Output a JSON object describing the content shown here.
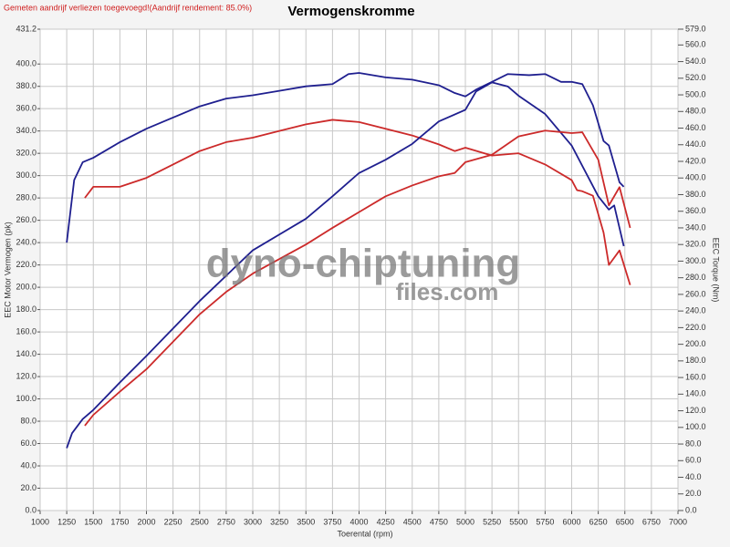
{
  "chart_data": {
    "type": "line",
    "title": "Vermogenskromme",
    "note": "Gemeten aandrijf verliezen toegevoegd!(Aandrijf rendement: 85.0%)",
    "watermark": [
      "dyno-chiptuning",
      "files.com"
    ],
    "xlabel": "Toerental (rpm)",
    "ylabel": "EEC Motor Vermogen (pk)",
    "y2label": "EEC Torque (Nm)",
    "xlim": [
      1000,
      7000
    ],
    "xticks": [
      1000,
      1250,
      1500,
      1750,
      2000,
      2250,
      2500,
      2750,
      3000,
      3250,
      3500,
      3750,
      4000,
      4250,
      4500,
      4750,
      5000,
      5250,
      5500,
      5750,
      6000,
      6250,
      6500,
      6750,
      7000
    ],
    "ylim": [
      0,
      431.2
    ],
    "yticks": [
      {
        "value": 0,
        "label": "0.0"
      },
      {
        "value": 20,
        "label": "20.0"
      },
      {
        "value": 40,
        "label": "40.0"
      },
      {
        "value": 60,
        "label": "60.0"
      },
      {
        "value": 80,
        "label": "80.0"
      },
      {
        "value": 100,
        "label": "100.0"
      },
      {
        "value": 120,
        "label": "120.0"
      },
      {
        "value": 140,
        "label": "140.0"
      },
      {
        "value": 160,
        "label": "160.0"
      },
      {
        "value": 180,
        "label": "180.0"
      },
      {
        "value": 200,
        "label": "200.0"
      },
      {
        "value": 220,
        "label": "220.0"
      },
      {
        "value": 240,
        "label": "240.0"
      },
      {
        "value": 260,
        "label": "260.0"
      },
      {
        "value": 280,
        "label": "280.0"
      },
      {
        "value": 300,
        "label": "300.0"
      },
      {
        "value": 320,
        "label": "320.0"
      },
      {
        "value": 340,
        "label": "340.0"
      },
      {
        "value": 360,
        "label": "360.0"
      },
      {
        "value": 380,
        "label": "380.0"
      },
      {
        "value": 400,
        "label": "400.0"
      },
      {
        "value": 431.2,
        "label": "431.2"
      }
    ],
    "y2lim": [
      0,
      579
    ],
    "y2ticks": [
      {
        "value": 0,
        "label": "0.0"
      },
      {
        "value": 20,
        "label": "20.0"
      },
      {
        "value": 40,
        "label": "40.0"
      },
      {
        "value": 60,
        "label": "60.0"
      },
      {
        "value": 80,
        "label": "80.0"
      },
      {
        "value": 100,
        "label": "100.0"
      },
      {
        "value": 120,
        "label": "120.0"
      },
      {
        "value": 140,
        "label": "140.0"
      },
      {
        "value": 160,
        "label": "160.0"
      },
      {
        "value": 180,
        "label": "180.0"
      },
      {
        "value": 200,
        "label": "200.0"
      },
      {
        "value": 220,
        "label": "220.0"
      },
      {
        "value": 240,
        "label": "240.0"
      },
      {
        "value": 260,
        "label": "260.0"
      },
      {
        "value": 280,
        "label": "280.0"
      },
      {
        "value": 300,
        "label": "300.0"
      },
      {
        "value": 320,
        "label": "320.0"
      },
      {
        "value": 340,
        "label": "340.0"
      },
      {
        "value": 360,
        "label": "360.0"
      },
      {
        "value": 380,
        "label": "380.0"
      },
      {
        "value": 400,
        "label": "400.0"
      },
      {
        "value": 420,
        "label": "420.0"
      },
      {
        "value": 440,
        "label": "440.0"
      },
      {
        "value": 460,
        "label": "460.0"
      },
      {
        "value": 480,
        "label": "480.0"
      },
      {
        "value": 500,
        "label": "500.0"
      },
      {
        "value": 520,
        "label": "520.0"
      },
      {
        "value": 540,
        "label": "540.0"
      },
      {
        "value": 560,
        "label": "560.0"
      },
      {
        "value": 579,
        "label": "579.0"
      }
    ],
    "grid": true,
    "series": [
      {
        "color": "#1f1f8f",
        "axis": "y",
        "x": [
          1250,
          1320,
          1400,
          1500,
          1750,
          2000,
          2250,
          2500,
          2750,
          3000,
          3250,
          3500,
          3750,
          3900,
          4000,
          4250,
          4500,
          4750,
          4900,
          5000,
          5100,
          5250,
          5400,
          5600,
          5750,
          5900,
          6000,
          6100,
          6200,
          6300,
          6350,
          6450,
          6490
        ],
        "values": [
          240,
          296,
          312,
          316,
          330,
          342,
          352,
          362,
          369,
          372,
          376,
          380,
          382,
          391,
          392,
          388,
          386,
          381,
          374,
          371,
          377,
          384,
          391,
          390,
          391,
          384,
          384,
          382,
          363,
          331,
          327,
          294,
          290
        ]
      },
      {
        "color": "#cc2a2a",
        "axis": "y",
        "x": [
          1420,
          1500,
          1750,
          2000,
          2250,
          2500,
          2750,
          3000,
          3250,
          3500,
          3750,
          4000,
          4250,
          4500,
          4750,
          4900,
          5000,
          5250,
          5500,
          5750,
          6000,
          6050,
          6100,
          6200,
          6300,
          6350,
          6450,
          6550
        ],
        "values": [
          280,
          290,
          290,
          298,
          310,
          322,
          330,
          334,
          340,
          346,
          350,
          348,
          342,
          336,
          328,
          322,
          325,
          318,
          320,
          310,
          296,
          287,
          286,
          282,
          249,
          220,
          233,
          202
        ]
      },
      {
        "color": "#1f1f8f",
        "axis": "y2",
        "x": [
          1250,
          1300,
          1400,
          1500,
          1750,
          2000,
          2500,
          3000,
          3500,
          3750,
          4000,
          4250,
          4500,
          4750,
          5000,
          5100,
          5250,
          5400,
          5500,
          5750,
          6000,
          6250,
          6350,
          6400,
          6490
        ],
        "values": [
          75,
          93,
          110,
          121,
          154,
          186,
          252,
          313,
          351,
          378,
          406,
          422,
          441,
          468,
          482,
          504,
          515,
          510,
          499,
          477,
          439,
          378,
          362,
          367,
          318
        ]
      },
      {
        "color": "#cc2a2a",
        "axis": "y2",
        "x": [
          1420,
          1500,
          1750,
          2000,
          2250,
          2500,
          2750,
          3000,
          3500,
          3750,
          4000,
          4250,
          4500,
          4750,
          4900,
          5000,
          5250,
          5500,
          5750,
          6000,
          6100,
          6250,
          6350,
          6450,
          6550
        ],
        "values": [
          102,
          115,
          143,
          170,
          203,
          236,
          263,
          285,
          320,
          340,
          359,
          378,
          391,
          402,
          406,
          419,
          428,
          450,
          457,
          454,
          455,
          422,
          367,
          389,
          340
        ]
      }
    ]
  }
}
